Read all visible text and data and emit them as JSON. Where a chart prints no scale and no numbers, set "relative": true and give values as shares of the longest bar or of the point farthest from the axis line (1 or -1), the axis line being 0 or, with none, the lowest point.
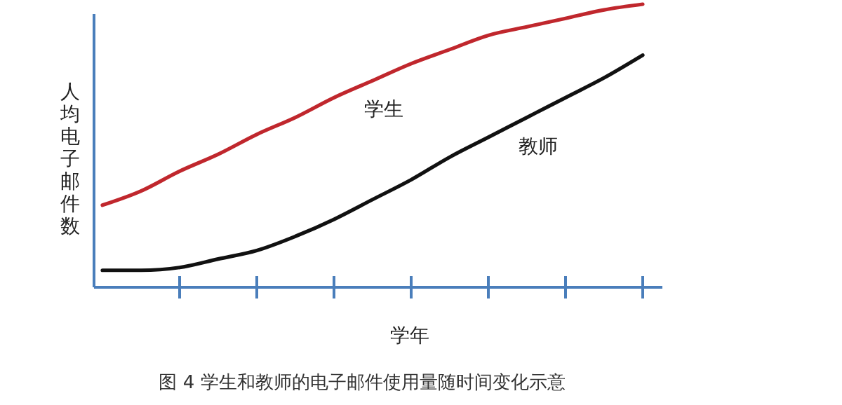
{
  "chart_data": {
    "type": "line",
    "relative": true,
    "title": "图 4  学生和教师的电子邮件使用量随时间变化示意",
    "xlabel": "学年",
    "ylabel": "人均电子邮件数",
    "categories": [
      null,
      null,
      null,
      null,
      null,
      null,
      null,
      null,
      null,
      null,
      null,
      null,
      null,
      null,
      null
    ],
    "marker": "none",
    "line_style": "solid",
    "series": [
      {
        "name": "学生",
        "color": "#c0272d",
        "values": [
          0.29,
          0.34,
          0.41,
          0.47,
          0.54,
          0.6,
          0.67,
          0.73,
          0.79,
          0.84,
          0.89,
          0.92,
          0.95,
          0.98,
          1.0
        ]
      },
      {
        "name": "教师",
        "color": "#111111",
        "values": [
          0.06,
          0.06,
          0.07,
          0.1,
          0.13,
          0.18,
          0.24,
          0.31,
          0.38,
          0.46,
          0.53,
          0.6,
          0.67,
          0.74,
          0.82
        ]
      }
    ]
  }
}
